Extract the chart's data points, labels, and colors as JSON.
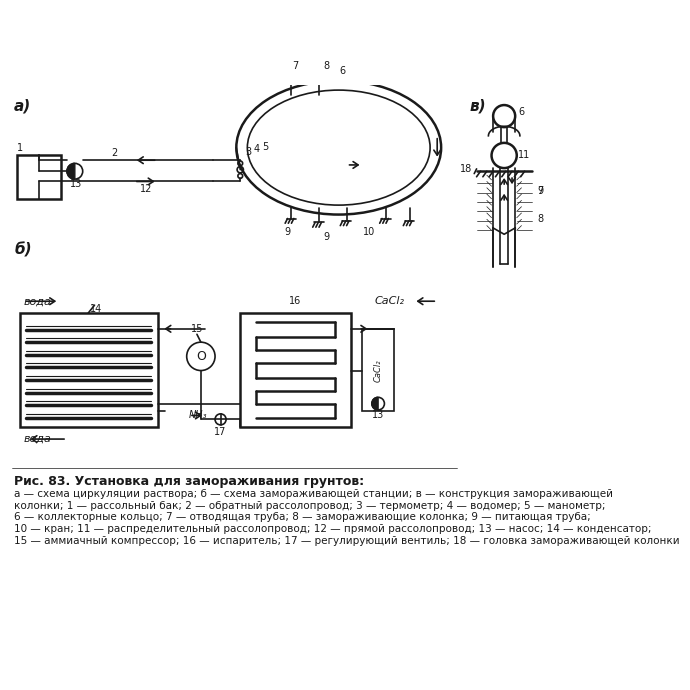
{
  "title": "Рис. 83. Установка для замораживания грунтов:",
  "cap1": "а — схема циркуляции раствора; б — схема замораживающей станции; в — конструкция замораживающей",
  "cap2": "колонки; 1 — рассольный бак; 2 — обратный рассолопровод; 3 — термометр; 4 — водомер; 5 — манометр;",
  "cap3": "6 — коллекторные кольцо; 7 — отводящая труба; 8 — замораживающие колонка; 9 — питающая труба;",
  "cap4": "10 — кран; 11 — распределительный рассолопровод; 12 — прямой рассолопровод; 13 — насос; 14 — конденсатор;",
  "cap5": "15 — аммиачный компрессор; 16 — испаритель; 17 — регулирующий вентиль; 18 — головка замораживающей колонки",
  "bg": "#ffffff",
  "lc": "#1a1a1a"
}
